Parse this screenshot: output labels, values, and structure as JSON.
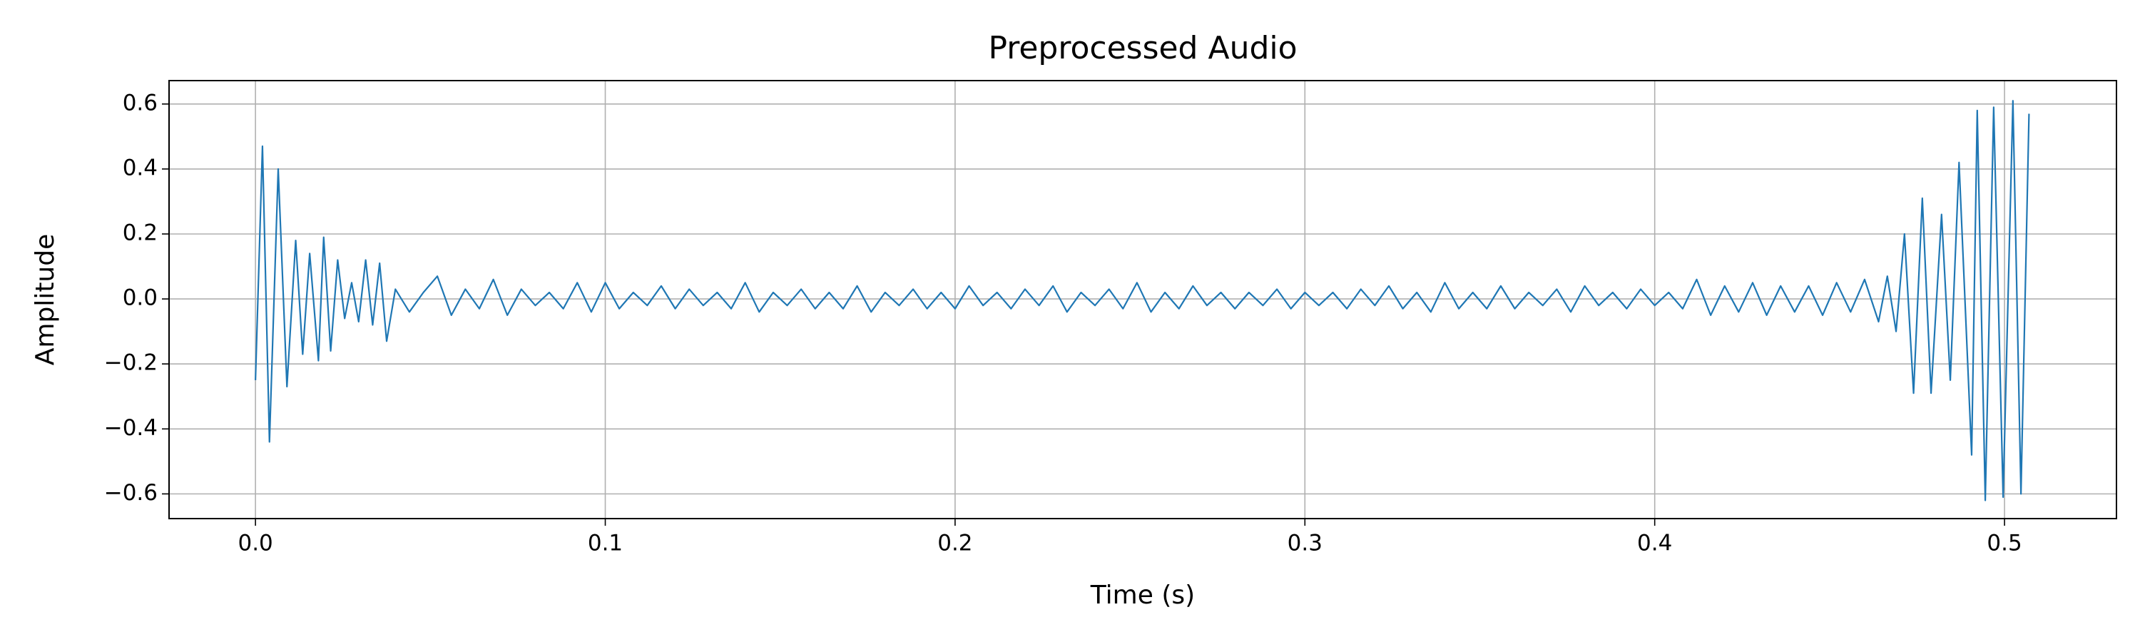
{
  "chart_data": {
    "type": "line",
    "title": "Preprocessed Audio",
    "x_label": "Time (s)",
    "y_label": "Amplitude",
    "color": "#1f77b4",
    "grid": true,
    "xlim": [
      -0.0247,
      0.532
    ],
    "ylim": [
      -0.676,
      0.672
    ],
    "xticks": [
      {
        "value": 0,
        "label": "0.0"
      },
      0.1,
      0.2,
      0.3,
      0.4,
      0.5
    ],
    "yticks": [
      {
        "value": -0.6,
        "label": "−0.6"
      },
      {
        "value": -0.4,
        "label": "−0.4"
      },
      {
        "value": -0.2,
        "label": "−0.2"
      },
      {
        "value": 0,
        "label": "0.0"
      },
      0.2,
      0.4,
      0.6
    ],
    "x": [
      0,
      0.002,
      0.004,
      0.0065,
      0.009,
      0.0115,
      0.0135,
      0.0155,
      0.018,
      0.0195,
      0.0215,
      0.0235,
      0.0255,
      0.0275,
      0.0295,
      0.0315,
      0.0335,
      0.0355,
      0.0375,
      0.04,
      0.044,
      0.048,
      0.052,
      0.056,
      0.06,
      0.064,
      0.068,
      0.072,
      0.076,
      0.08,
      0.084,
      0.088,
      0.092,
      0.096,
      0.1,
      0.104,
      0.108,
      0.112,
      0.116,
      0.12,
      0.124,
      0.128,
      0.132,
      0.136,
      0.14,
      0.144,
      0.148,
      0.152,
      0.156,
      0.16,
      0.164,
      0.168,
      0.172,
      0.176,
      0.18,
      0.184,
      0.188,
      0.192,
      0.196,
      0.2,
      0.204,
      0.208,
      0.212,
      0.216,
      0.22,
      0.224,
      0.228,
      0.232,
      0.236,
      0.24,
      0.244,
      0.248,
      0.252,
      0.256,
      0.26,
      0.264,
      0.268,
      0.272,
      0.276,
      0.28,
      0.284,
      0.288,
      0.292,
      0.296,
      0.3,
      0.304,
      0.308,
      0.312,
      0.316,
      0.32,
      0.324,
      0.328,
      0.332,
      0.336,
      0.34,
      0.344,
      0.348,
      0.352,
      0.356,
      0.36,
      0.364,
      0.368,
      0.372,
      0.376,
      0.38,
      0.384,
      0.388,
      0.392,
      0.396,
      0.4,
      0.404,
      0.408,
      0.412,
      0.416,
      0.42,
      0.424,
      0.428,
      0.432,
      0.436,
      0.44,
      0.444,
      0.448,
      0.452,
      0.456,
      0.46,
      0.464,
      0.4665,
      0.469,
      0.4714,
      0.474,
      0.4765,
      0.479,
      0.482,
      0.4845,
      0.487,
      0.4906,
      0.4922,
      0.4945,
      0.4969,
      0.4996,
      0.5024,
      0.5047,
      0.507
    ],
    "values": [
      -0.25,
      0.47,
      -0.44,
      0.4,
      -0.27,
      0.18,
      -0.17,
      0.14,
      -0.19,
      0.19,
      -0.16,
      0.12,
      -0.06,
      0.05,
      -0.07,
      0.12,
      -0.08,
      0.11,
      -0.13,
      0.03,
      -0.04,
      0.02,
      0.07,
      -0.05,
      0.03,
      -0.03,
      0.06,
      -0.05,
      0.03,
      -0.02,
      0.02,
      -0.03,
      0.05,
      -0.04,
      0.05,
      -0.03,
      0.02,
      -0.02,
      0.04,
      -0.03,
      0.03,
      -0.02,
      0.02,
      -0.03,
      0.05,
      -0.04,
      0.02,
      -0.02,
      0.03,
      -0.03,
      0.02,
      -0.03,
      0.04,
      -0.04,
      0.02,
      -0.02,
      0.03,
      -0.03,
      0.02,
      -0.03,
      0.04,
      -0.02,
      0.02,
      -0.03,
      0.03,
      -0.02,
      0.04,
      -0.04,
      0.02,
      -0.02,
      0.03,
      -0.03,
      0.05,
      -0.04,
      0.02,
      -0.03,
      0.04,
      -0.02,
      0.02,
      -0.03,
      0.02,
      -0.02,
      0.03,
      -0.03,
      0.02,
      -0.02,
      0.02,
      -0.03,
      0.03,
      -0.02,
      0.04,
      -0.03,
      0.02,
      -0.04,
      0.05,
      -0.03,
      0.02,
      -0.03,
      0.04,
      -0.03,
      0.02,
      -0.02,
      0.03,
      -0.04,
      0.04,
      -0.02,
      0.02,
      -0.03,
      0.03,
      -0.02,
      0.02,
      -0.03,
      0.06,
      -0.05,
      0.04,
      -0.04,
      0.05,
      -0.05,
      0.04,
      -0.04,
      0.04,
      -0.05,
      0.05,
      -0.04,
      0.06,
      -0.07,
      0.07,
      -0.1,
      0.2,
      -0.29,
      0.31,
      -0.29,
      0.26,
      -0.25,
      0.42,
      -0.48,
      0.58,
      -0.62,
      0.59,
      -0.61,
      0.61,
      -0.6,
      0.57
    ]
  }
}
